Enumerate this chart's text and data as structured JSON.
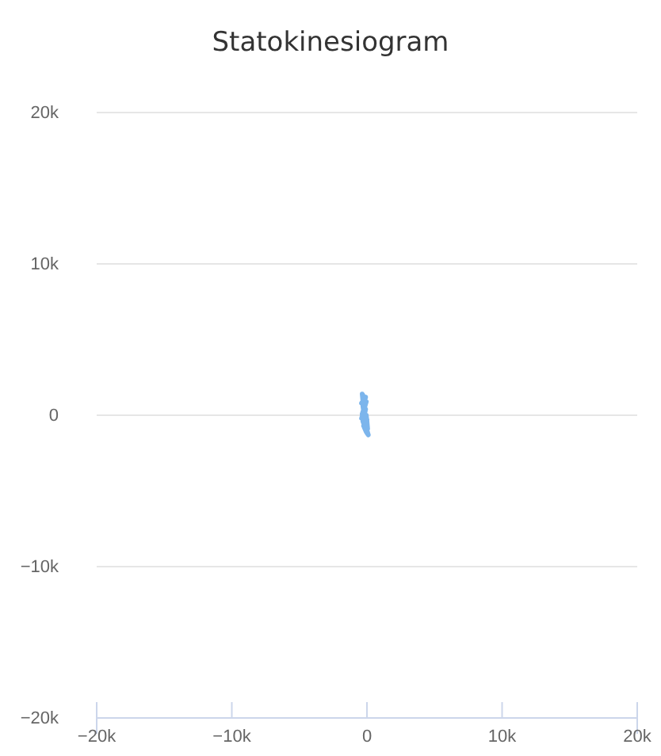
{
  "chart_data": {
    "type": "line",
    "title": "Statokinesiogram",
    "x": [
      -200,
      -350,
      -150,
      -400,
      -100,
      -300,
      -250,
      -50,
      -350,
      -150,
      -400,
      -200,
      -50,
      -300,
      -100,
      -350,
      -150,
      0,
      -250,
      -100,
      -300,
      0,
      -150,
      50,
      -200,
      -50,
      100,
      -100,
      50,
      0,
      -50
    ],
    "series": [
      {
        "color": "#7cb5ec",
        "values": [
          0,
          1400,
          1100,
          800,
          1200,
          600,
          300,
          900,
          100,
          500,
          -200,
          200,
          -100,
          -400,
          400,
          0,
          -600,
          -300,
          -700,
          -900,
          -400,
          -1000,
          -600,
          -1200,
          -800,
          -1100,
          -1300,
          -700,
          -900,
          -400,
          0
        ]
      }
    ],
    "xlim": [
      -20000,
      20000
    ],
    "xticks": [
      {
        "value": -20000,
        "label": "−20k"
      },
      {
        "value": -10000,
        "label": "−10k"
      },
      {
        "value": 0,
        "label": "0"
      },
      {
        "value": 10000,
        "label": "10k"
      },
      {
        "value": 20000,
        "label": "20k"
      }
    ],
    "ylim": [
      -20000,
      20000
    ],
    "yticks": [
      {
        "value": -20000,
        "label": "−20k"
      },
      {
        "value": -10000,
        "label": "−10k"
      },
      {
        "value": 0,
        "label": "0"
      },
      {
        "value": 10000,
        "label": "10k"
      },
      {
        "value": 20000,
        "label": "20k"
      }
    ],
    "grid": "y",
    "marker": "none",
    "line_style": "solid"
  }
}
